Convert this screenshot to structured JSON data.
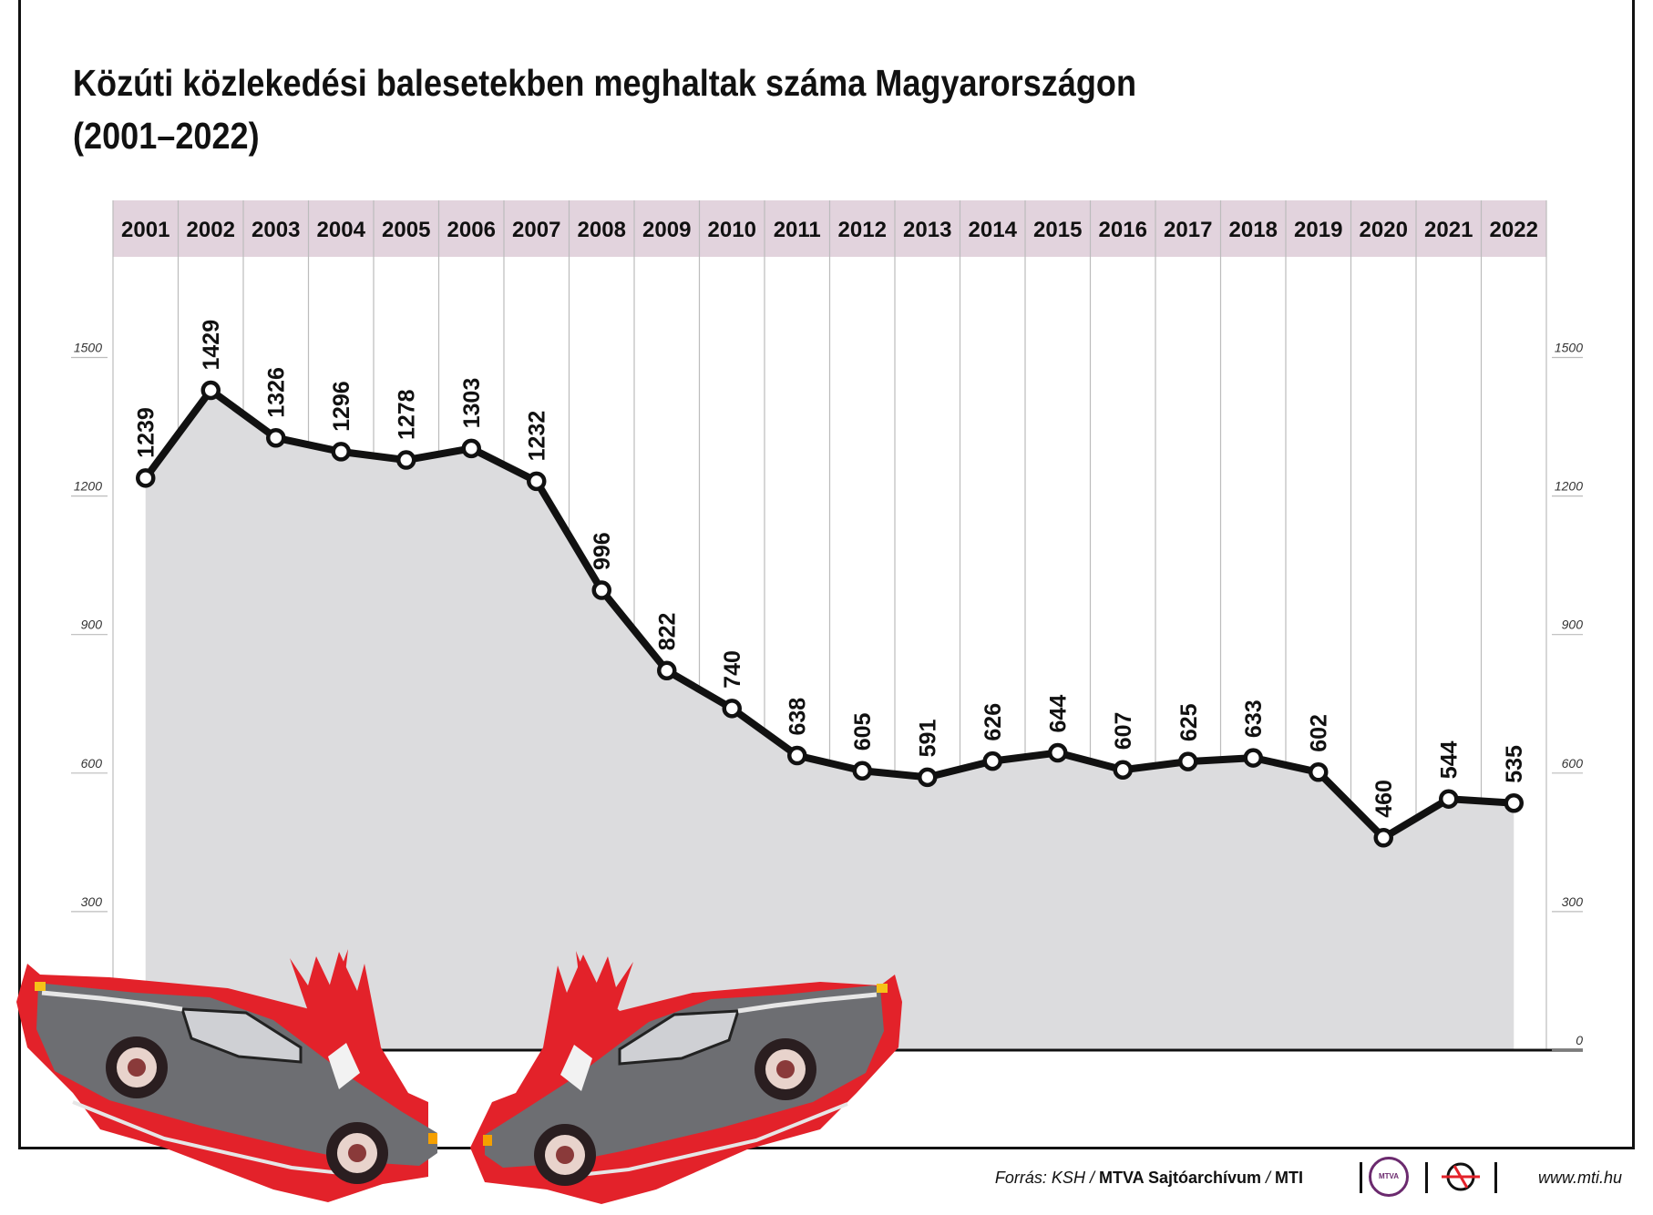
{
  "title_line1": "Közúti közlekedési balesetekben meghaltak száma Magyarországon",
  "title_line2": "(2001–2022)",
  "chart_data": {
    "type": "area",
    "title": "Közúti közlekedési balesetekben meghaltak száma Magyarországon (2001–2022)",
    "categories": [
      "2001",
      "2002",
      "2003",
      "2004",
      "2005",
      "2006",
      "2007",
      "2008",
      "2009",
      "2010",
      "2011",
      "2012",
      "2013",
      "2014",
      "2015",
      "2016",
      "2017",
      "2018",
      "2019",
      "2020",
      "2021",
      "2022"
    ],
    "values": [
      1239,
      1429,
      1326,
      1296,
      1278,
      1303,
      1232,
      996,
      822,
      740,
      638,
      605,
      591,
      626,
      644,
      607,
      625,
      633,
      602,
      460,
      544,
      535
    ],
    "yticks": [
      0,
      300,
      600,
      900,
      1200,
      1500
    ],
    "ylim": [
      0,
      1700
    ],
    "xlabel": "",
    "ylabel": "",
    "grid": true,
    "colors": {
      "line": "#111111",
      "area": "#dcdcde",
      "header": "#e2d3dd",
      "grid": "#bcbcbc"
    }
  },
  "footer": {
    "source_label": "Forrás: KSH / ",
    "archive": "MTVA Sajtóarchívum",
    "mti": "MTI",
    "logo_text": "MTVA",
    "url": "www.mti.hu"
  },
  "illustration": "two-cars-crash"
}
